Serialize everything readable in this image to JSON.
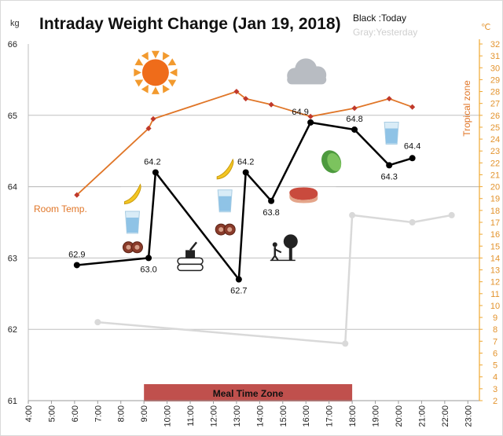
{
  "chart_data": {
    "type": "line",
    "title": "Intraday Weight Change (Jan 19, 2018)",
    "legend": {
      "today": "Black :Today",
      "yesterday": "Gray:Yesterday"
    },
    "ylabel": "kg",
    "y2label": "℃",
    "ylim": [
      61,
      66
    ],
    "y2lim": [
      2,
      32
    ],
    "xlim": [
      4,
      23.5
    ],
    "x_ticks": [
      "4:00",
      "5:00",
      "6:00",
      "7:00",
      "8:00",
      "9:00",
      "10:00",
      "11:00",
      "12:00",
      "13:00",
      "14:00",
      "15:00",
      "16:00",
      "17:00",
      "18:00",
      "19:00",
      "20:00",
      "21:00",
      "22:00",
      "23:00"
    ],
    "y_ticks": [
      "61",
      "62",
      "63",
      "64",
      "65",
      "66"
    ],
    "y2_ticks": [
      "2",
      "3",
      "4",
      "5",
      "6",
      "7",
      "8",
      "9",
      "10",
      "11",
      "12",
      "13",
      "14",
      "15",
      "16",
      "17",
      "18",
      "19",
      "20",
      "21",
      "22",
      "23",
      "24",
      "25",
      "26",
      "27",
      "28",
      "29",
      "30",
      "31",
      "32"
    ],
    "series": [
      {
        "name": "Today",
        "color": "#000000",
        "points": [
          {
            "x": 6.1,
            "y": 62.9,
            "label": "62.9"
          },
          {
            "x": 9.2,
            "y": 63.0,
            "label": "63.0"
          },
          {
            "x": 9.5,
            "y": 64.2,
            "label": "64.2"
          },
          {
            "x": 13.1,
            "y": 62.7,
            "label": "62.7"
          },
          {
            "x": 13.4,
            "y": 64.2,
            "label": "64.2"
          },
          {
            "x": 14.5,
            "y": 63.8,
            "label": "63.8"
          },
          {
            "x": 16.2,
            "y": 64.9,
            "label": "64.9"
          },
          {
            "x": 18.1,
            "y": 64.8,
            "label": "64.8"
          },
          {
            "x": 19.6,
            "y": 64.3,
            "label": "64.3"
          },
          {
            "x": 20.6,
            "y": 64.4,
            "label": "64.4"
          }
        ]
      },
      {
        "name": "Yesterday",
        "color": "#d9d9d9",
        "points": [
          {
            "x": 7.0,
            "y": 62.1
          },
          {
            "x": 17.7,
            "y": 61.8
          },
          {
            "x": 18.0,
            "y": 63.6
          },
          {
            "x": 20.6,
            "y": 63.5
          },
          {
            "x": 22.3,
            "y": 63.6
          }
        ]
      },
      {
        "name": "Room Temp.",
        "color": "#e07628",
        "axis": "right",
        "points": [
          {
            "x": 6.1,
            "y": 19.3
          },
          {
            "x": 9.2,
            "y": 24.9
          },
          {
            "x": 9.4,
            "y": 25.7
          },
          {
            "x": 13.0,
            "y": 28.0
          },
          {
            "x": 13.4,
            "y": 27.4
          },
          {
            "x": 14.5,
            "y": 26.9
          },
          {
            "x": 16.2,
            "y": 25.9
          },
          {
            "x": 18.1,
            "y": 26.6
          },
          {
            "x": 19.6,
            "y": 27.4
          },
          {
            "x": 20.6,
            "y": 26.7
          }
        ]
      }
    ],
    "reference_lines": [
      {
        "axis": "right",
        "y": 20,
        "xrange": [
          4,
          8
        ]
      },
      {
        "axis": "right",
        "y": 20,
        "xrange": [
          17.3,
          23.5
        ]
      }
    ],
    "annotations": {
      "room_temp": "Room Temp.",
      "tropical_zone": "Tropical zone",
      "meal_zone": {
        "label": "Meal Time Zone",
        "x_start": 9,
        "x_end": 18,
        "color": "#c0504d"
      }
    },
    "icons": [
      {
        "name": "sun-icon",
        "x": 9.5,
        "y": 65.6
      },
      {
        "name": "cloud-icon",
        "x": 16.0,
        "y": 65.6
      },
      {
        "name": "banana-icon",
        "x": 8.5,
        "y": 63.9
      },
      {
        "name": "water-glass-icon",
        "x": 8.5,
        "y": 63.5
      },
      {
        "name": "food-plate-icon",
        "x": 8.5,
        "y": 63.15
      },
      {
        "name": "sawmill-icon",
        "x": 11.0,
        "y": 63.0
      },
      {
        "name": "banana-icon",
        "x": 12.5,
        "y": 64.25
      },
      {
        "name": "water-glass-icon",
        "x": 12.5,
        "y": 63.8
      },
      {
        "name": "food-plate-icon",
        "x": 12.5,
        "y": 63.4
      },
      {
        "name": "gardening-icon",
        "x": 15.0,
        "y": 63.1
      },
      {
        "name": "lettuce-icon",
        "x": 17.1,
        "y": 64.35
      },
      {
        "name": "steak-icon",
        "x": 15.9,
        "y": 63.88
      },
      {
        "name": "water-glass-icon",
        "x": 19.7,
        "y": 64.75
      }
    ]
  }
}
